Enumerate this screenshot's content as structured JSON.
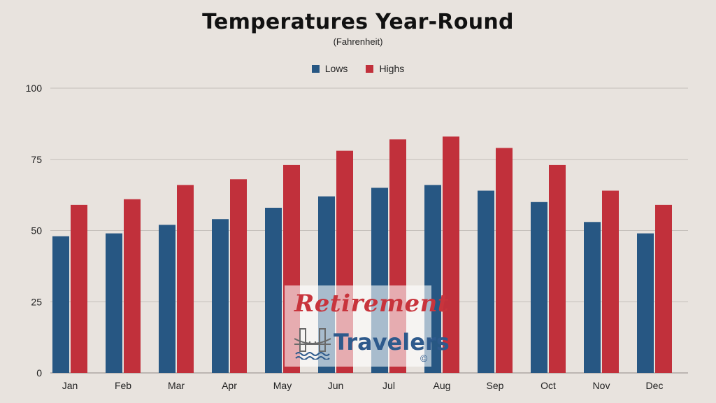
{
  "chart_data": {
    "type": "bar",
    "title": "Temperatures Year-Round",
    "subtitle": "(Fahrenheit)",
    "categories": [
      "Jan",
      "Feb",
      "Mar",
      "Apr",
      "May",
      "Jun",
      "Jul",
      "Aug",
      "Sep",
      "Oct",
      "Nov",
      "Dec"
    ],
    "series": [
      {
        "name": "Lows",
        "color": "#275783",
        "values": [
          48,
          49,
          52,
          54,
          58,
          62,
          65,
          66,
          64,
          60,
          53,
          49
        ]
      },
      {
        "name": "Highs",
        "color": "#c1303b",
        "values": [
          59,
          61,
          66,
          68,
          73,
          78,
          82,
          83,
          79,
          73,
          64,
          59
        ]
      }
    ],
    "ylim": [
      0,
      100
    ],
    "yticks": [
      0,
      25,
      50,
      75,
      100
    ],
    "grid": true,
    "legend_position": "top-center"
  },
  "watermark": {
    "line1": "Retirement",
    "line2": "Travelers",
    "copyright": "©",
    "icon": "bridge-icon"
  },
  "colors": {
    "background": "#e8e3de",
    "gridline": "#c4bfba"
  }
}
